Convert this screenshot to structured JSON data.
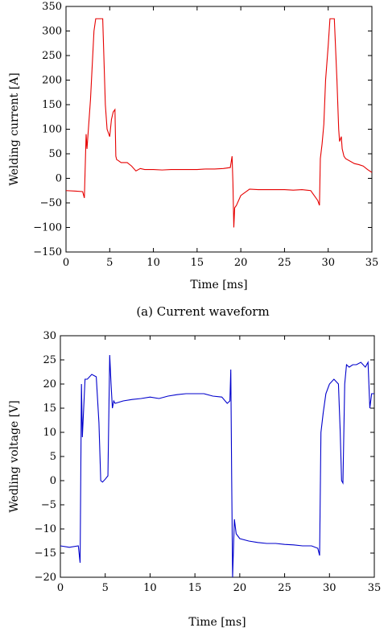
{
  "chart_data": [
    {
      "type": "line",
      "caption": "(a) Current waveform",
      "xlabel": "Time [ms]",
      "ylabel": "Welding current [A]",
      "xlim": [
        0,
        35
      ],
      "ylim": [
        -150,
        350
      ],
      "xticks": [
        0,
        5,
        10,
        15,
        20,
        25,
        30,
        35
      ],
      "yticks": [
        -150,
        -100,
        -50,
        0,
        50,
        100,
        150,
        200,
        250,
        300,
        350
      ],
      "grid": false,
      "colors": {
        "line": "#e60000"
      },
      "series": [
        {
          "x": [
            0,
            1,
            1.9,
            2.1,
            2.3,
            2.4,
            2.6,
            2.8,
            3.0,
            3.2,
            3.4,
            3.6,
            3.8,
            4.2,
            4.5,
            4.7,
            5.0,
            5.2,
            5.4,
            5.6,
            5.7,
            5.8,
            6.0,
            6.3,
            7.0,
            7.5,
            8.0,
            8.5,
            9.0,
            10,
            11,
            12,
            13,
            14,
            15,
            16,
            17,
            18,
            18.8,
            19.0,
            19.1,
            19.2,
            19.3,
            19.5,
            20.0,
            21.0,
            22,
            23,
            24,
            25,
            26,
            27,
            28,
            28.8,
            29.0,
            29.1,
            29.3,
            29.5,
            29.7,
            30.0,
            30.2,
            30.4,
            30.7,
            31.0,
            31.2,
            31.3,
            31.5,
            31.6,
            31.8,
            32.0,
            33.0,
            33.5,
            34.0,
            34.5,
            35.0
          ],
          "y": [
            -25,
            -26,
            -27,
            -40,
            90,
            60,
            110,
            160,
            230,
            300,
            325,
            325,
            325,
            325,
            150,
            100,
            85,
            120,
            135,
            140,
            45,
            38,
            36,
            32,
            32,
            25,
            15,
            20,
            18,
            18,
            17,
            18,
            18,
            18,
            18,
            19,
            19,
            20,
            22,
            45,
            -10,
            -100,
            -60,
            -55,
            -35,
            -22,
            -23,
            -23,
            -23,
            -23,
            -24,
            -23,
            -25,
            -45,
            -55,
            40,
            70,
            110,
            200,
            270,
            325,
            325,
            325,
            200,
            100,
            75,
            85,
            60,
            45,
            40,
            30,
            28,
            25,
            18,
            12
          ]
        }
      ]
    },
    {
      "type": "line",
      "caption": "",
      "xlabel": "Time [ms]",
      "ylabel": "Wedling voltage [V]",
      "xlim": [
        0,
        35
      ],
      "ylim": [
        -20,
        30
      ],
      "xticks": [
        0,
        5,
        10,
        15,
        20,
        25,
        30,
        35
      ],
      "yticks": [
        -20,
        -15,
        -10,
        -5,
        0,
        5,
        10,
        15,
        20,
        25,
        30
      ],
      "grid": false,
      "colors": {
        "line": "#0000cc"
      },
      "series": [
        {
          "x": [
            0,
            1.0,
            2.0,
            2.2,
            2.35,
            2.45,
            2.6,
            2.75,
            3.0,
            3.5,
            4.0,
            4.3,
            4.5,
            4.7,
            5.0,
            5.3,
            5.5,
            5.65,
            5.8,
            5.95,
            6.1,
            7,
            8,
            9,
            10,
            11,
            12,
            13,
            14,
            15,
            16,
            17,
            18,
            18.6,
            18.9,
            19.0,
            19.1,
            19.2,
            19.4,
            19.6,
            20.0,
            21,
            22,
            23,
            24,
            25,
            26,
            27,
            28,
            28.7,
            28.9,
            29.05,
            29.3,
            29.6,
            30.0,
            30.5,
            31.0,
            31.2,
            31.35,
            31.5,
            31.7,
            31.9,
            32.2,
            32.6,
            33.0,
            33.5,
            34.0,
            34.3,
            34.5,
            34.7,
            35.0
          ],
          "y": [
            -13.5,
            -13.8,
            -13.5,
            -17,
            20,
            9,
            15,
            21,
            21,
            22,
            21.5,
            12,
            0,
            -0.3,
            0.3,
            1,
            26,
            20,
            15,
            16.5,
            16,
            16.5,
            16.8,
            17,
            17.3,
            17,
            17.5,
            17.8,
            18,
            18,
            18,
            17.5,
            17.3,
            16,
            16.5,
            23,
            0,
            -20,
            -8,
            -11,
            -12,
            -12.5,
            -12.8,
            -13,
            -13,
            -13.2,
            -13.3,
            -13.5,
            -13.5,
            -14,
            -15.5,
            10,
            14,
            18,
            20,
            21,
            20,
            10,
            0,
            -0.5,
            20,
            24,
            23.5,
            24,
            24,
            24.5,
            23.5,
            24.5,
            15,
            18,
            18
          ]
        }
      ]
    }
  ]
}
